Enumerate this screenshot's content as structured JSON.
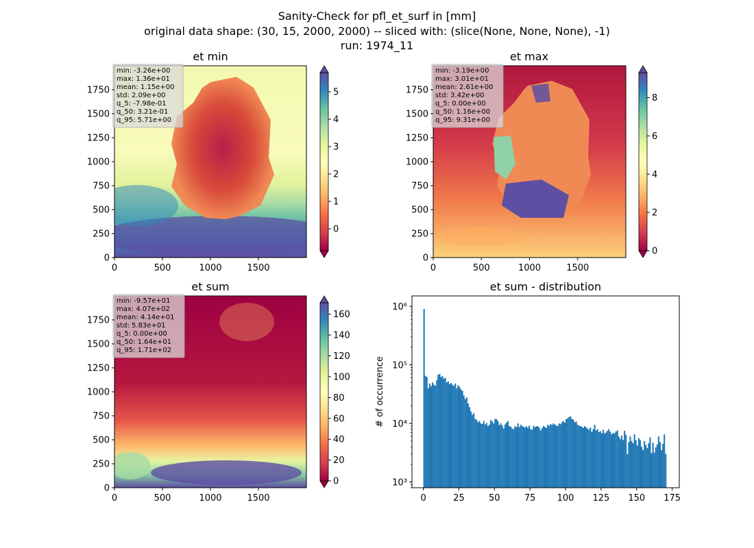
{
  "suptitle": [
    "Sanity-Check for pfl_et_surf in [mm]",
    "original data shape: (30, 15, 2000, 2000) -- sliced with: (slice(None, None, None), -1)",
    "run: 1974_11"
  ],
  "colors": {
    "hist_bar": "#1f77b4",
    "stats_box_bg": "#cfcfcf"
  },
  "chart_data": [
    {
      "type": "heatmap",
      "title": "et min",
      "colormap": "Spectral",
      "x_ticks": [
        0,
        500,
        1000,
        1500
      ],
      "y_ticks": [
        0,
        250,
        500,
        750,
        1000,
        1250,
        1500,
        1750
      ],
      "xlim": [
        0,
        2000
      ],
      "ylim": [
        0,
        2000
      ],
      "colorbar": {
        "ticks": [
          0,
          1,
          2,
          3,
          4,
          5
        ],
        "range": [
          -0.8,
          5.7
        ],
        "extend": "both"
      },
      "stats": [
        "min: -3.26e+00",
        "max: 1.36e+01",
        "mean: 1.15e+00",
        "std: 2.09e+00",
        "q_5: -7.98e-01",
        "q_50: 3.21e-01",
        "q_95: 5.71e+00"
      ]
    },
    {
      "type": "heatmap",
      "title": "et max",
      "colormap": "Spectral",
      "x_ticks": [
        0,
        500,
        1000,
        1500
      ],
      "y_ticks": [
        0,
        250,
        500,
        750,
        1000,
        1250,
        1500,
        1750
      ],
      "xlim": [
        0,
        2000
      ],
      "ylim": [
        0,
        2000
      ],
      "colorbar": {
        "ticks": [
          0,
          2,
          4,
          6,
          8
        ],
        "range": [
          0,
          9.31
        ],
        "extend": "both"
      },
      "stats": [
        "min: -3.19e+00",
        "max: 3.01e+01",
        "mean: 2.61e+00",
        "std: 3.42e+00",
        "q_5: 0.00e+00",
        "q_50: 1.16e+00",
        "q_95: 9.31e+00"
      ]
    },
    {
      "type": "heatmap",
      "title": "et sum",
      "colormap": "Spectral",
      "x_ticks": [
        0,
        500,
        1000,
        1500
      ],
      "y_ticks": [
        0,
        250,
        500,
        750,
        1000,
        1250,
        1500,
        1750
      ],
      "xlim": [
        0,
        2000
      ],
      "ylim": [
        0,
        2000
      ],
      "colorbar": {
        "ticks": [
          0,
          20,
          40,
          60,
          80,
          100,
          120,
          140,
          160
        ],
        "range": [
          0,
          171
        ],
        "extend": "both"
      },
      "stats": [
        "min: -9.57e+01",
        "max: 4.07e+02",
        "mean: 4.14e+01",
        "std: 5.83e+01",
        "q_5: 0.00e+00",
        "q_50: 1.64e+01",
        "q_95: 1.71e+02"
      ]
    },
    {
      "type": "bar",
      "title": "et sum - distribution",
      "ylabel": "# of occurrence",
      "xlabel": "",
      "y_scale": "log",
      "x_ticks": [
        0,
        25,
        50,
        75,
        100,
        125,
        150,
        175
      ],
      "y_ticks": [
        {
          "value": 1000,
          "label": "10³"
        },
        {
          "value": 10000,
          "label": "10⁴"
        },
        {
          "value": 100000,
          "label": "10⁵"
        },
        {
          "value": 1000000,
          "label": "10⁶"
        }
      ],
      "xlim": [
        -8,
        180
      ],
      "ylim": [
        800,
        1500000
      ],
      "bin_start": 0,
      "bin_width": 1.0,
      "values": [
        900000,
        65000,
        62000,
        40000,
        48000,
        43000,
        50000,
        46000,
        44000,
        55000,
        68000,
        70000,
        62000,
        64000,
        58000,
        60000,
        50000,
        52000,
        47000,
        49000,
        46000,
        44000,
        48000,
        40000,
        45000,
        42000,
        38000,
        36000,
        30000,
        26000,
        28000,
        22000,
        19000,
        16000,
        14000,
        15000,
        12000,
        11500,
        10500,
        11000,
        10000,
        9800,
        11000,
        9600,
        10200,
        9000,
        9500,
        11500,
        10800,
        10000,
        12000,
        11800,
        11000,
        9400,
        10000,
        9200,
        8200,
        9600,
        10300,
        11000,
        9000,
        8800,
        8200,
        8000,
        9000,
        8600,
        10000,
        8700,
        9500,
        9000,
        8800,
        8500,
        9000,
        8400,
        9200,
        8000,
        7800,
        9100,
        8600,
        8900,
        9000,
        8500,
        7600,
        8300,
        9000,
        8700,
        8400,
        9500,
        9100,
        9800,
        9400,
        10000,
        9600,
        9200,
        9000,
        10000,
        9700,
        10500,
        11000,
        10300,
        11800,
        12200,
        12800,
        13200,
        12000,
        11600,
        10500,
        10800,
        9500,
        9200,
        9000,
        8800,
        8400,
        9000,
        8600,
        8200,
        7800,
        8500,
        7200,
        8000,
        9500,
        7600,
        8000,
        7100,
        7400,
        6800,
        7800,
        6800,
        7000,
        7500,
        8000,
        7200,
        6500,
        6900,
        6800,
        7300,
        7600,
        6000,
        5400,
        6200,
        5200,
        7500,
        6400,
        3000,
        4800,
        6000,
        5000,
        4600,
        6500,
        5200,
        4200,
        5600,
        5200,
        4000,
        3500,
        5000,
        4300,
        3800,
        4600,
        5800,
        3100,
        4700,
        3200,
        3900,
        4400,
        6000,
        4800,
        3500,
        4500,
        6500,
        3000
      ]
    }
  ]
}
